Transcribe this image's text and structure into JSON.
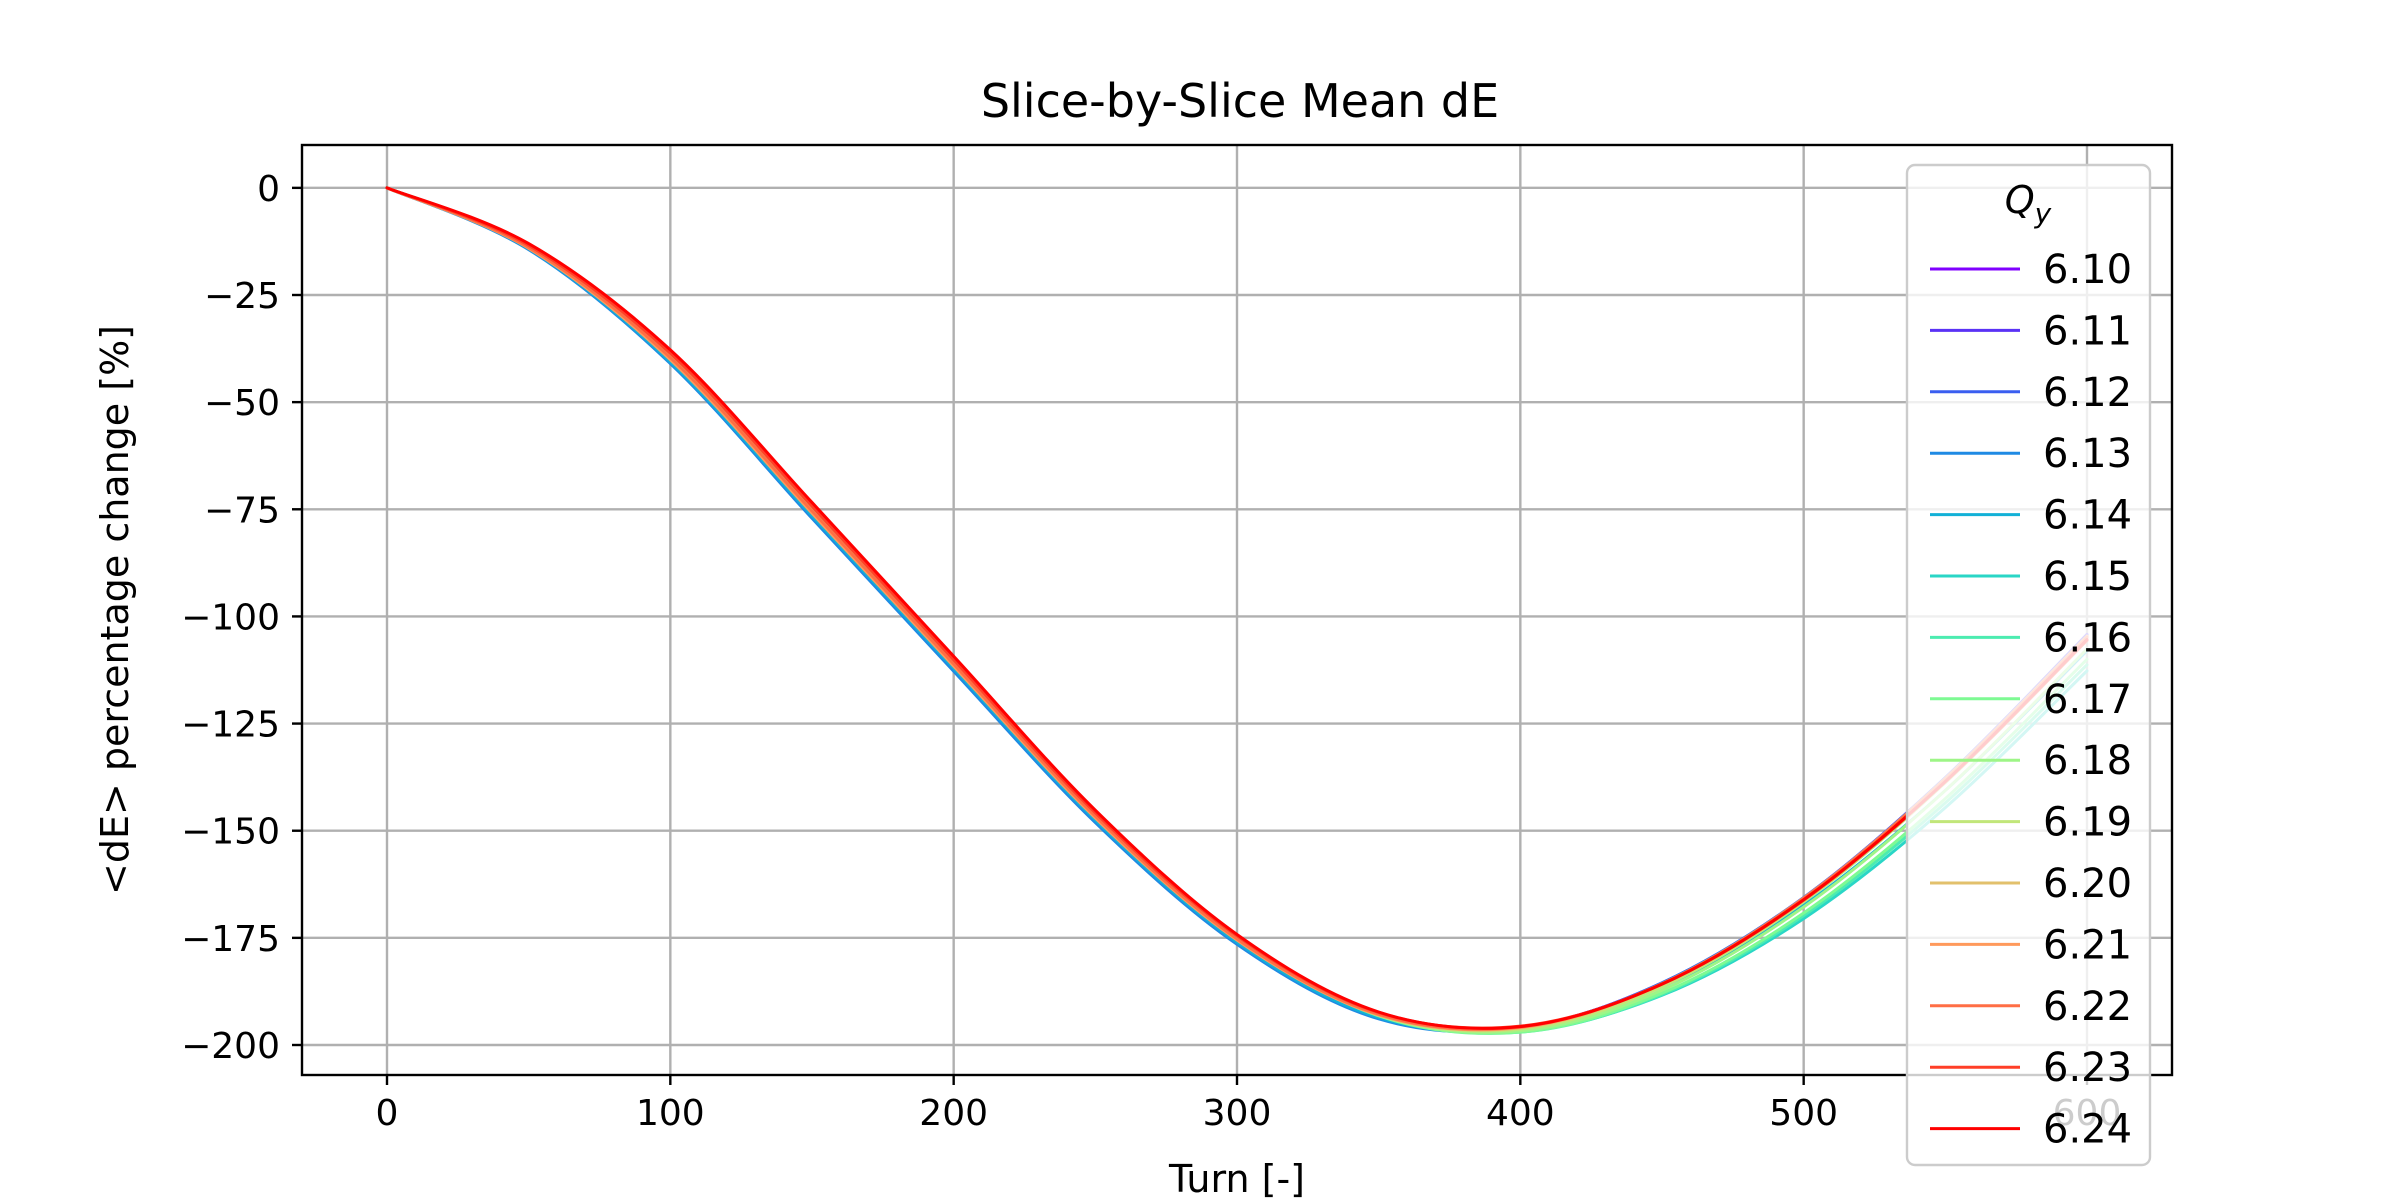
{
  "chart_data": {
    "type": "line",
    "title": "Slice-by-Slice Mean dE",
    "xlabel": "Turn [-]",
    "ylabel": "<dE> percentage change [%]",
    "xlim": [
      -30,
      630
    ],
    "ylim": [
      -207,
      10
    ],
    "xticks": [
      0,
      100,
      200,
      300,
      400,
      500,
      600
    ],
    "yticks": [
      0,
      -25,
      -50,
      -75,
      -100,
      -125,
      -150,
      -175,
      -200
    ],
    "grid": true,
    "legend": {
      "title": "Q_y",
      "title_main": "Q",
      "title_sub": "y",
      "placement": "right"
    },
    "x": [
      0,
      50,
      100,
      150,
      200,
      250,
      300,
      350,
      400,
      450,
      500,
      550,
      600
    ],
    "series": [
      {
        "name": "6.10",
        "color": "#8000ff",
        "values": [
          0,
          -13.6,
          -39.0,
          -74.7,
          -110.4,
          -146.2,
          -175.0,
          -192.9,
          -195.8,
          -185.6,
          -165.8,
          -137.9,
          -104.6
        ]
      },
      {
        "name": "6.11",
        "color": "#5a32f5",
        "values": [
          0,
          -13.8,
          -39.5,
          -75.3,
          -111.0,
          -146.7,
          -175.4,
          -193.2,
          -195.9,
          -185.5,
          -165.6,
          -137.6,
          -104.2
        ]
      },
      {
        "name": "6.12",
        "color": "#3a5ef0",
        "values": [
          0,
          -14.1,
          -40.2,
          -76.1,
          -111.8,
          -147.3,
          -175.9,
          -193.5,
          -196.0,
          -185.5,
          -165.6,
          -137.7,
          -104.5
        ]
      },
      {
        "name": "6.13",
        "color": "#1f8ae4",
        "values": [
          0,
          -14.4,
          -41.0,
          -77.1,
          -112.8,
          -148.1,
          -176.5,
          -193.9,
          -196.2,
          -185.6,
          -165.7,
          -137.9,
          -104.8
        ]
      },
      {
        "name": "6.14",
        "color": "#12b1d7",
        "values": [
          0,
          -14.2,
          -40.6,
          -76.5,
          -112.1,
          -147.5,
          -176.0,
          -193.6,
          -196.3,
          -186.4,
          -167.4,
          -140.6,
          -108.0
        ]
      },
      {
        "name": "6.15",
        "color": "#2ad6c6",
        "values": [
          0,
          -13.2,
          -38.2,
          -73.8,
          -109.7,
          -145.4,
          -174.4,
          -192.8,
          -196.8,
          -188.4,
          -170.5,
          -144.6,
          -112.7
        ]
      },
      {
        "name": "6.16",
        "color": "#4cecb0",
        "values": [
          0,
          -13.4,
          -38.6,
          -74.2,
          -110.0,
          -145.7,
          -174.7,
          -193.1,
          -197.0,
          -188.2,
          -169.8,
          -143.5,
          -111.3
        ]
      },
      {
        "name": "6.17",
        "color": "#7efa93",
        "values": [
          0,
          -13.5,
          -38.8,
          -74.5,
          -110.3,
          -146.0,
          -174.9,
          -193.2,
          -197.0,
          -187.9,
          -169.2,
          -142.5,
          -110.0
        ]
      },
      {
        "name": "6.18",
        "color": "#9ef587",
        "values": [
          0,
          -13.6,
          -39.0,
          -74.7,
          -110.5,
          -146.1,
          -175.0,
          -193.1,
          -196.7,
          -187.2,
          -167.8,
          -140.6,
          -107.6
        ]
      },
      {
        "name": "6.19",
        "color": "#c1e679",
        "values": [
          0,
          -13.8,
          -39.4,
          -75.2,
          -110.9,
          -146.5,
          -175.2,
          -193.0,
          -196.3,
          -186.4,
          -166.6,
          -138.8,
          -105.6
        ]
      },
      {
        "name": "6.20",
        "color": "#e2c06c",
        "values": [
          0,
          -14.0,
          -39.8,
          -75.6,
          -111.3,
          -146.8,
          -175.4,
          -193.0,
          -196.0,
          -185.8,
          -165.8,
          -137.9,
          -104.7
        ]
      },
      {
        "name": "6.21",
        "color": "#ff9a5c",
        "values": [
          0,
          -14.1,
          -40.1,
          -75.9,
          -111.6,
          -147.0,
          -175.5,
          -193.0,
          -195.9,
          -185.7,
          -165.7,
          -137.8,
          -104.6
        ]
      },
      {
        "name": "6.22",
        "color": "#ff6e45",
        "values": [
          0,
          -13.9,
          -39.6,
          -75.4,
          -111.1,
          -146.6,
          -175.2,
          -192.8,
          -195.8,
          -185.7,
          -165.8,
          -138.0,
          -104.9
        ]
      },
      {
        "name": "6.23",
        "color": "#ff3f27",
        "values": [
          0,
          -13.4,
          -38.6,
          -74.3,
          -110.1,
          -145.8,
          -174.5,
          -192.4,
          -195.6,
          -185.8,
          -166.2,
          -138.6,
          -105.6
        ]
      },
      {
        "name": "6.24",
        "color": "#ff0000",
        "values": [
          0,
          -13.0,
          -37.8,
          -73.4,
          -109.3,
          -145.2,
          -174.2,
          -192.3,
          -195.7,
          -185.8,
          -166.1,
          -138.5,
          -105.4
        ]
      }
    ]
  }
}
